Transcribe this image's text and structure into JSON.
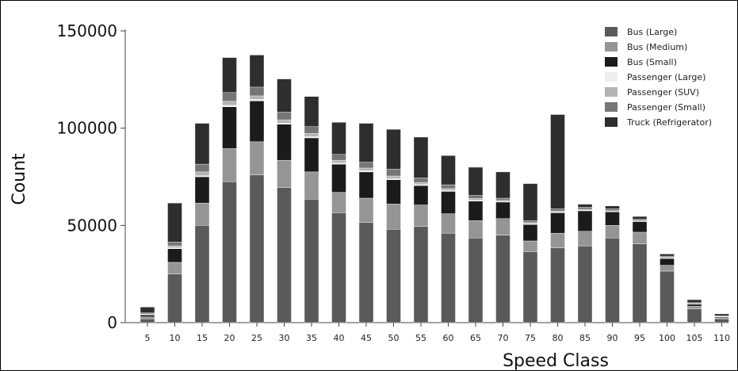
{
  "chart_data": {
    "type": "bar",
    "stacked": true,
    "xlabel": "Speed Class",
    "ylabel": "Count",
    "ylim": [
      0,
      150000
    ],
    "yticks": [
      0,
      50000,
      100000,
      150000
    ],
    "ytick_labels": [
      "0",
      "50000",
      "100000",
      "150000"
    ],
    "grid": false,
    "legend_position": "top-right",
    "categories": [
      "5",
      "10",
      "15",
      "20",
      "25",
      "30",
      "35",
      "40",
      "45",
      "50",
      "55",
      "60",
      "65",
      "70",
      "75",
      "80",
      "85",
      "90",
      "95",
      "100",
      "105",
      "110"
    ],
    "series": [
      {
        "name": "Bus (Large)",
        "color": "#5a5a5a",
        "values": [
          2000,
          25000,
          50000,
          72500,
          76000,
          69500,
          63500,
          56500,
          51500,
          48000,
          49500,
          46000,
          43500,
          45000,
          36500,
          38500,
          39500,
          43500,
          40500,
          26500,
          7000,
          2000
        ]
      },
      {
        "name": "Bus (Medium)",
        "color": "#959595",
        "values": [
          1000,
          6000,
          11500,
          17000,
          17000,
          14000,
          14000,
          10500,
          12500,
          13000,
          11000,
          10000,
          9000,
          8500,
          5500,
          7500,
          7500,
          6500,
          6000,
          3000,
          1500,
          500
        ]
      },
      {
        "name": "Bus (Small)",
        "color": "#1b1b1b",
        "values": [
          1000,
          7000,
          13500,
          21500,
          21000,
          18500,
          17500,
          14500,
          13500,
          12500,
          10000,
          11500,
          10000,
          8500,
          8500,
          10500,
          10500,
          7000,
          5500,
          3500,
          1000,
          500
        ]
      },
      {
        "name": "Passenger (Large)",
        "color": "#eeeeee",
        "values": [
          200,
          500,
          500,
          800,
          800,
          600,
          600,
          500,
          600,
          500,
          500,
          400,
          400,
          300,
          300,
          300,
          300,
          200,
          200,
          200,
          100,
          100
        ]
      },
      {
        "name": "Passenger (SUV)",
        "color": "#b4b4b4",
        "values": [
          300,
          1000,
          2000,
          2000,
          1800,
          1700,
          1700,
          1500,
          1400,
          1400,
          1100,
          1000,
          1000,
          600,
          600,
          500,
          500,
          300,
          300,
          300,
          200,
          100
        ]
      },
      {
        "name": "Passenger (Small)",
        "color": "#767676",
        "values": [
          500,
          2000,
          4000,
          4500,
          4500,
          4000,
          3500,
          3000,
          3000,
          3500,
          2300,
          2000,
          1500,
          1100,
          1100,
          1200,
          1000,
          1000,
          800,
          700,
          500,
          300
        ]
      },
      {
        "name": "Truck (Refrigerator)",
        "color": "#2e2e2e",
        "values": [
          3000,
          20000,
          21000,
          18000,
          16500,
          17000,
          15500,
          16500,
          20000,
          20500,
          21000,
          15000,
          14500,
          13500,
          19000,
          48500,
          1600,
          1500,
          1300,
          1100,
          1500,
          1000
        ]
      }
    ]
  }
}
